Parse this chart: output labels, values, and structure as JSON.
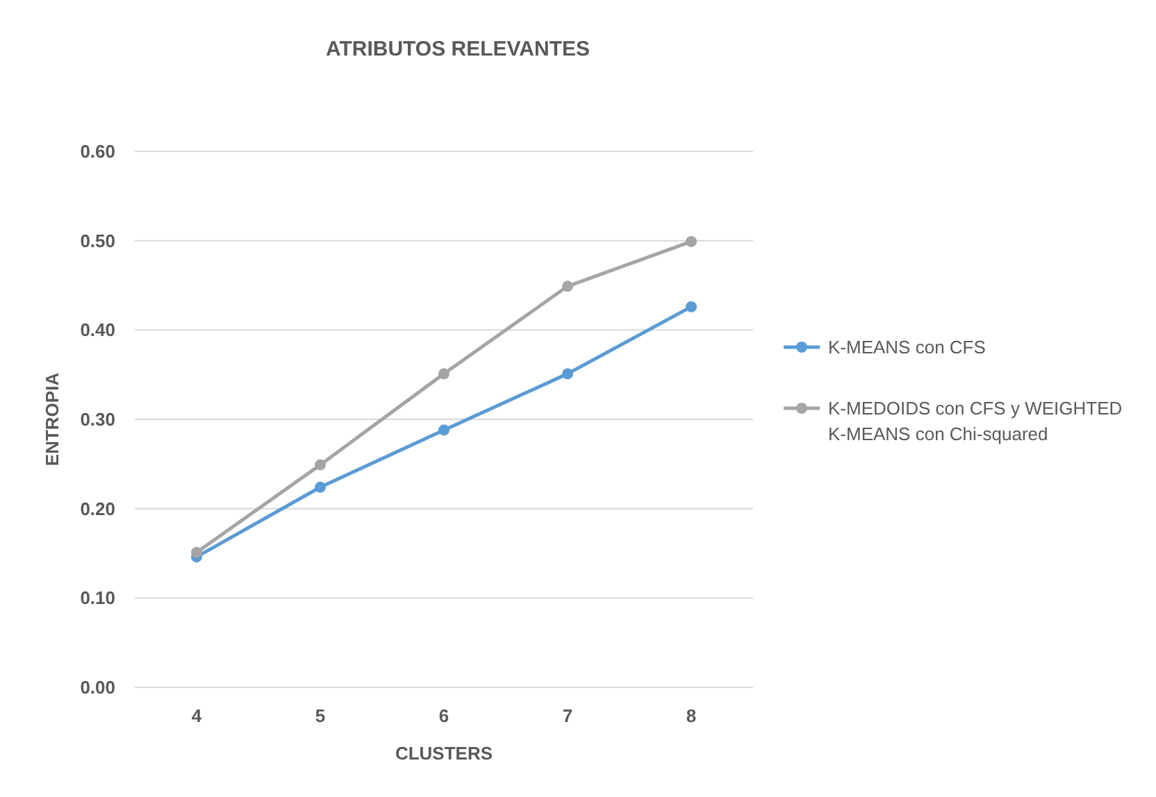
{
  "chart_data": {
    "type": "line",
    "title": "ATRIBUTOS RELEVANTES",
    "xlabel": "CLUSTERS",
    "ylabel": "ENTROPIA",
    "categories": [
      "4",
      "5",
      "6",
      "7",
      "8"
    ],
    "series": [
      {
        "name": "K-MEANS con CFS",
        "color": "#5b9bd5",
        "values": [
          0.146,
          0.224,
          0.288,
          0.351,
          0.426
        ]
      },
      {
        "name": "K-MEDOIDS con CFS y WEIGHTED K-MEANS con Chi-squared",
        "color": "#a5a5a5",
        "values": [
          0.151,
          0.249,
          0.351,
          0.449,
          0.499
        ]
      }
    ],
    "ylim": [
      0,
      0.6
    ],
    "yticks": [
      {
        "value": 0,
        "label": "0.00"
      },
      {
        "value": 0.1,
        "label": "0.10"
      },
      {
        "value": 0.2,
        "label": "0.20"
      },
      {
        "value": 0.3,
        "label": "0.30"
      },
      {
        "value": 0.4,
        "label": "0.40"
      },
      {
        "value": 0.5,
        "label": "0.50"
      },
      {
        "value": 0.6,
        "label": "0.60"
      }
    ],
    "grid": "y",
    "legend": "right",
    "marker": "circle",
    "line_style": "solid"
  }
}
